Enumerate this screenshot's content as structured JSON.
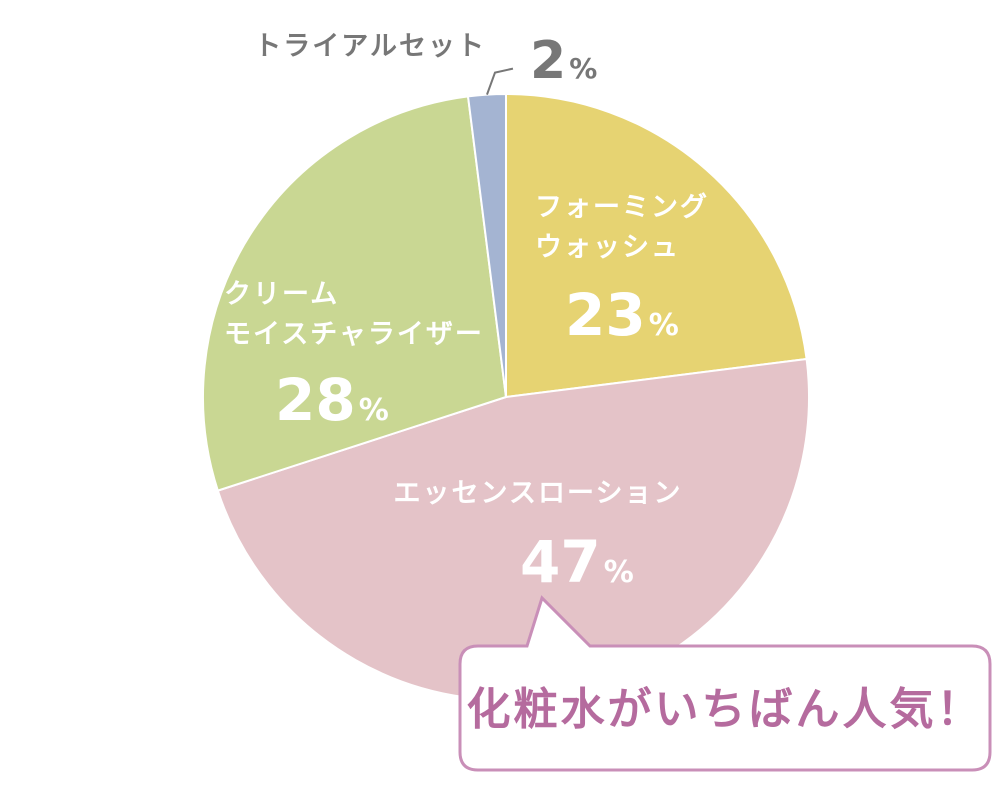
{
  "chart_data": {
    "type": "pie",
    "start": "top",
    "direction": "clockwise",
    "slices": [
      {
        "label_lines": [
          "フォーミング",
          "ウォッシュ"
        ],
        "value": 23,
        "pct_text": "23",
        "color": "#e6d372"
      },
      {
        "label_lines": [
          "エッセンスローション"
        ],
        "value": 47,
        "pct_text": "47",
        "color": "#e4c3c8"
      },
      {
        "label_lines": [
          "クリーム",
          "モイスチャライザー"
        ],
        "value": 28,
        "pct_text": "28",
        "color": "#c9d793"
      },
      {
        "label_lines": [
          "トライアルセット"
        ],
        "value": 2,
        "pct_text": "2",
        "color": "#a4b4d2"
      }
    ],
    "percent_sign": "%",
    "outside_label_text_color": "#777777",
    "inside_label_text_color": "#ffffff"
  },
  "callout": {
    "text": "化粧水がいちばん人気！",
    "border_color": "#c98fb8",
    "text_color": "#b56b9e"
  }
}
